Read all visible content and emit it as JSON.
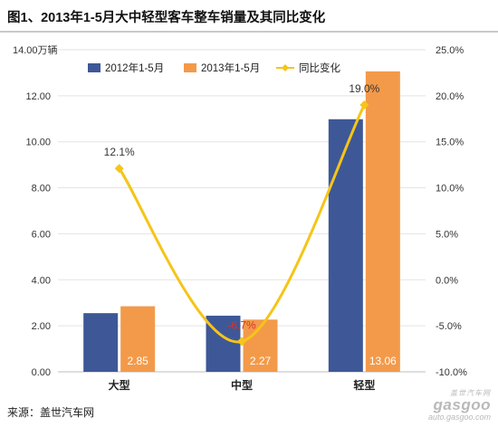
{
  "title": "图1、2013年1-5月大中轻型客车整车销量及其同比变化",
  "source": "来源：盖世汽车网",
  "watermark": {
    "sub": "盖世汽车网",
    "main": "gasgoo",
    "url": "auto.gasgoo.com"
  },
  "colors": {
    "series1": "#3e5897",
    "series2": "#f39a4a",
    "line": "#f5c518",
    "label_red": "#d9342b",
    "grid": "#e3e3e3",
    "axis_text": "#333333"
  },
  "chart_data": {
    "type": "bar",
    "categories": [
      "大型",
      "中型",
      "轻型"
    ],
    "series": [
      {
        "name": "2012年1-5月",
        "values": [
          2.55,
          2.44,
          10.98
        ]
      },
      {
        "name": "2013年1-5月",
        "values": [
          2.85,
          2.27,
          13.06
        ],
        "labels": [
          "2.85",
          "2.27",
          "13.06"
        ]
      }
    ],
    "line_series": {
      "name": "同比变化",
      "values": [
        12.1,
        -6.7,
        19.0
      ],
      "labels": [
        "12.1%",
        "-6.7%",
        "19.0%"
      ]
    },
    "y_left": {
      "unit_label": "万辆",
      "ticks": [
        "0.00",
        "2.00",
        "4.00",
        "6.00",
        "8.00",
        "10.00",
        "12.00",
        "14.00"
      ],
      "lim": [
        0,
        14
      ]
    },
    "y_right": {
      "ticks": [
        "-10.0%",
        "-5.0%",
        "0.0%",
        "5.0%",
        "10.0%",
        "15.0%",
        "20.0%",
        "25.0%"
      ],
      "lim": [
        -10,
        25
      ]
    },
    "grid": true,
    "legend": "top"
  }
}
